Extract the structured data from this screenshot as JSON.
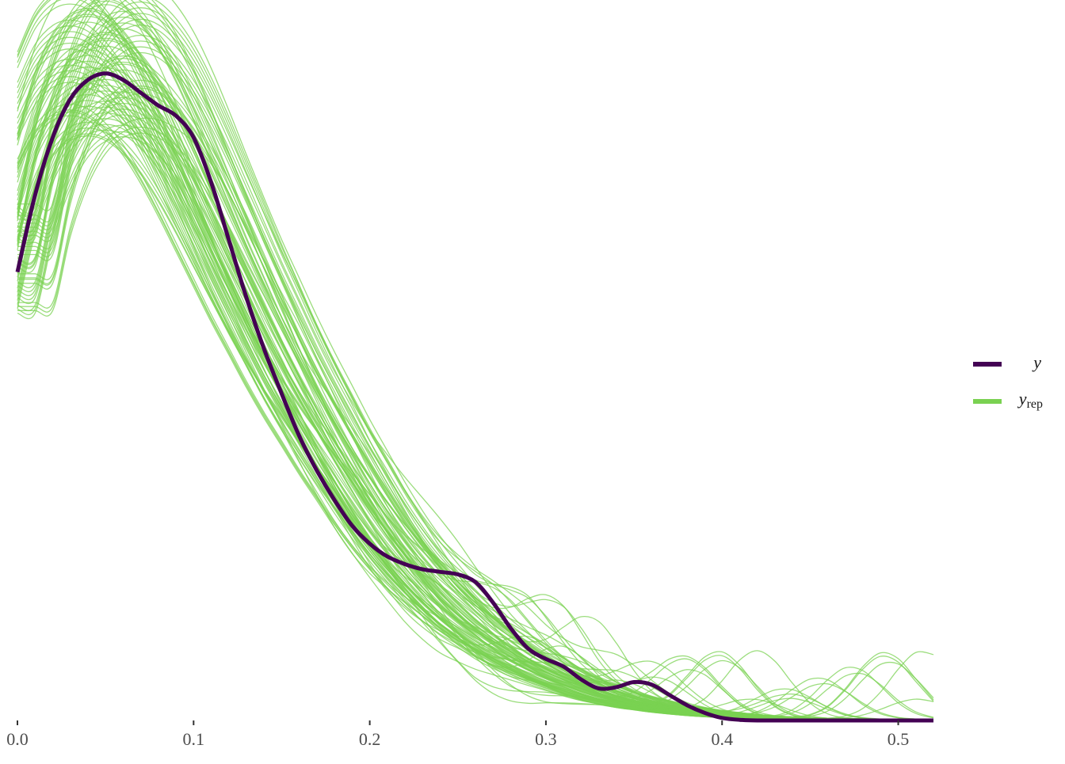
{
  "chart_data": {
    "type": "line",
    "title": "",
    "xlabel": "",
    "ylabel": "",
    "xlim": [
      0,
      0.52
    ],
    "ylim": [
      0,
      5.5
    ],
    "x_ticks": [
      0.0,
      0.1,
      0.2,
      0.3,
      0.4,
      0.5
    ],
    "x_tick_labels": [
      "0.0",
      "0.1",
      "0.2",
      "0.3",
      "0.4",
      "0.5"
    ],
    "y_axis_visible": false,
    "grid": false,
    "legend_position": "right",
    "legend": [
      {
        "key": "y",
        "label": "y",
        "subscript": "",
        "color": "#440154"
      },
      {
        "key": "yrep",
        "label": "y",
        "subscript": "rep",
        "color": "#7AD151"
      }
    ],
    "colors": {
      "y": "#440154",
      "yrep": "#7AD151"
    },
    "series": [
      {
        "name": "y",
        "x": [
          0.0,
          0.01,
          0.02,
          0.03,
          0.04,
          0.05,
          0.06,
          0.07,
          0.08,
          0.09,
          0.1,
          0.11,
          0.12,
          0.13,
          0.14,
          0.15,
          0.16,
          0.17,
          0.18,
          0.19,
          0.2,
          0.21,
          0.22,
          0.23,
          0.24,
          0.25,
          0.26,
          0.27,
          0.28,
          0.29,
          0.3,
          0.31,
          0.32,
          0.33,
          0.34,
          0.35,
          0.36,
          0.37,
          0.38,
          0.39,
          0.4,
          0.41,
          0.42,
          0.45,
          0.5,
          0.52
        ],
        "values": [
          3.5,
          4.1,
          4.55,
          4.85,
          5.0,
          5.05,
          5.0,
          4.9,
          4.8,
          4.72,
          4.55,
          4.2,
          3.75,
          3.3,
          2.9,
          2.55,
          2.22,
          1.95,
          1.72,
          1.52,
          1.38,
          1.28,
          1.22,
          1.18,
          1.16,
          1.14,
          1.08,
          0.92,
          0.72,
          0.56,
          0.48,
          0.42,
          0.32,
          0.25,
          0.26,
          0.3,
          0.28,
          0.2,
          0.12,
          0.06,
          0.02,
          0.005,
          0.0,
          0.0,
          0.0,
          0.0
        ]
      },
      {
        "name": "yrep",
        "replicates": 100,
        "x": [
          0.0,
          0.01,
          0.02,
          0.03,
          0.04,
          0.05,
          0.06,
          0.07,
          0.08,
          0.09,
          0.1,
          0.11,
          0.12,
          0.13,
          0.14,
          0.15,
          0.16,
          0.17,
          0.18,
          0.19,
          0.2,
          0.21,
          0.22,
          0.23,
          0.24,
          0.25,
          0.26,
          0.27,
          0.28,
          0.29,
          0.3,
          0.31,
          0.32,
          0.33,
          0.34,
          0.35,
          0.36,
          0.37,
          0.38,
          0.39,
          0.4,
          0.41,
          0.42,
          0.43,
          0.44,
          0.45,
          0.46,
          0.47,
          0.48,
          0.49,
          0.5,
          0.51,
          0.52
        ],
        "values": [
          3.6,
          4.25,
          4.7,
          4.98,
          5.12,
          5.16,
          5.12,
          5.0,
          4.82,
          4.58,
          4.3,
          4.0,
          3.7,
          3.4,
          3.12,
          2.84,
          2.58,
          2.34,
          2.1,
          1.88,
          1.66,
          1.46,
          1.28,
          1.12,
          0.97,
          0.84,
          0.72,
          0.62,
          0.52,
          0.44,
          0.37,
          0.31,
          0.26,
          0.21,
          0.17,
          0.14,
          0.11,
          0.09,
          0.07,
          0.055,
          0.042,
          0.032,
          0.025,
          0.02,
          0.016,
          0.013,
          0.011,
          0.01,
          0.009,
          0.008,
          0.008,
          0.008,
          0.008
        ]
      }
    ]
  }
}
